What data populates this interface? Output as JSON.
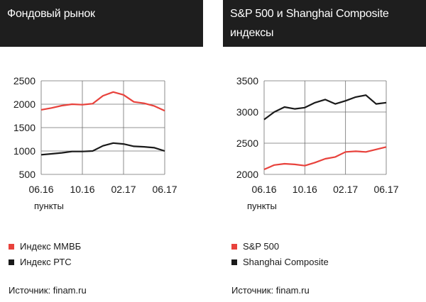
{
  "panels": [
    {
      "title": "Фондовый рынок",
      "unit_label": "пункты",
      "legend": [
        {
          "label": "Индекс ММВБ",
          "color": "#e8423c"
        },
        {
          "label": "Индекс РТС",
          "color": "#1a1a1a"
        }
      ],
      "source": "Источник: finam.ru"
    },
    {
      "title": "S&P 500 и Shanghai Composite индексы",
      "legend": [
        {
          "label": "S&P 500",
          "color": "#e8423c"
        },
        {
          "label": "Shanghai Composite",
          "color": "#1a1a1a"
        }
      ],
      "source": "Источник: finam.ru",
      "unit_label": "пункты"
    }
  ],
  "chart_data": [
    {
      "type": "line",
      "ylim": [
        500,
        2500
      ],
      "yticks": [
        "2500",
        "2000",
        "1500",
        "1000",
        "500"
      ],
      "xticks": [
        "06.16",
        "10.16",
        "02.17",
        "06.17"
      ],
      "grid": true,
      "x": [
        "06.16",
        "07.16",
        "08.16",
        "09.16",
        "10.16",
        "11.16",
        "12.16",
        "01.17",
        "02.17",
        "03.17",
        "04.17",
        "05.17",
        "06.17"
      ],
      "series": [
        {
          "name": "Индекс ММВБ",
          "color": "#e8423c",
          "values": [
            1880,
            1920,
            1970,
            2000,
            1990,
            2010,
            2180,
            2260,
            2200,
            2050,
            2020,
            1960,
            1860
          ]
        },
        {
          "name": "Индекс РТС",
          "color": "#1a1a1a",
          "values": [
            920,
            940,
            960,
            990,
            990,
            1000,
            1110,
            1170,
            1150,
            1100,
            1090,
            1070,
            1000
          ]
        }
      ]
    },
    {
      "type": "line",
      "ylim": [
        2000,
        3500
      ],
      "yticks": [
        "3500",
        "3000",
        "2500",
        "2000"
      ],
      "xticks": [
        "06.16",
        "10.16",
        "02.17",
        "06.17"
      ],
      "grid": true,
      "x": [
        "06.16",
        "07.16",
        "08.16",
        "09.16",
        "10.16",
        "11.16",
        "12.16",
        "01.17",
        "02.17",
        "03.17",
        "04.17",
        "05.17",
        "06.17"
      ],
      "series": [
        {
          "name": "S&P 500",
          "color": "#e8423c",
          "values": [
            2080,
            2150,
            2170,
            2160,
            2140,
            2190,
            2250,
            2280,
            2360,
            2370,
            2360,
            2400,
            2440
          ]
        },
        {
          "name": "Shanghai Composite",
          "color": "#1a1a1a",
          "values": [
            2880,
            3000,
            3080,
            3050,
            3070,
            3150,
            3200,
            3130,
            3180,
            3240,
            3270,
            3130,
            3150
          ]
        }
      ]
    }
  ]
}
